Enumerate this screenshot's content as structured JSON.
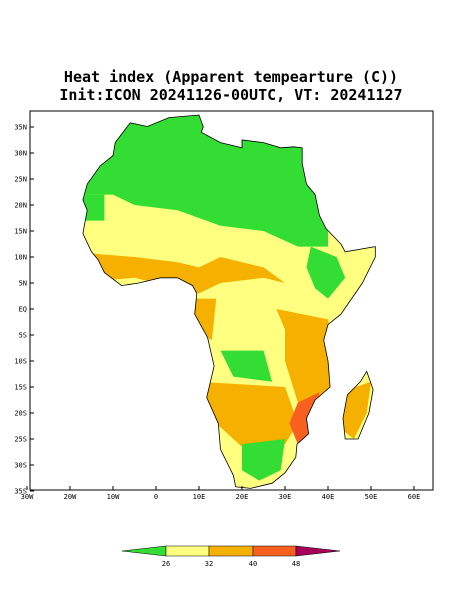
{
  "map": {
    "title": "Heat index (Apparent tempearture (C))",
    "subtitle": "Init:ICON 20241126-00UTC, VT: 20241127",
    "lat_labels": [
      {
        "value": 35,
        "label": "35N"
      },
      {
        "value": 30,
        "label": "30N"
      },
      {
        "value": 25,
        "label": "25N"
      },
      {
        "value": 20,
        "label": "20N"
      },
      {
        "value": 15,
        "label": "15N"
      },
      {
        "value": 10,
        "label": "10N"
      },
      {
        "value": 5,
        "label": "5N"
      },
      {
        "value": 0,
        "label": "EQ"
      },
      {
        "value": -5,
        "label": "5S"
      },
      {
        "value": -10,
        "label": "10S"
      },
      {
        "value": -15,
        "label": "15S"
      },
      {
        "value": -20,
        "label": "20S"
      },
      {
        "value": -25,
        "label": "25S"
      },
      {
        "value": -30,
        "label": "30S"
      },
      {
        "value": -35,
        "label": "35S"
      }
    ],
    "lon_labels": [
      {
        "value": -30,
        "label": "30W"
      },
      {
        "value": -20,
        "label": "20W"
      },
      {
        "value": -10,
        "label": "10W"
      },
      0,
      {
        "value": 10,
        "label": "10E"
      },
      {
        "value": 20,
        "label": "20E"
      },
      {
        "value": 30,
        "label": "30E"
      },
      {
        "value": 40,
        "label": "40E"
      },
      {
        "value": 50,
        "label": "50E"
      },
      {
        "value": 60,
        "label": "60E"
      }
    ]
  },
  "colorbar": {
    "labels": [
      26,
      32,
      40,
      48
    ],
    "colors": [
      "#33dd33",
      "#ffff80",
      "#f5b000",
      "#f86020",
      "#a8005a"
    ]
  }
}
